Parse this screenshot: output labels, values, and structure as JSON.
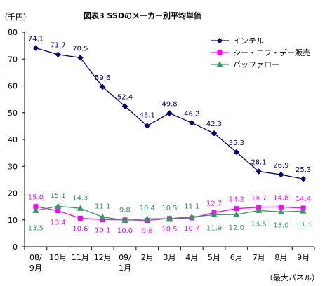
{
  "chart_data": {
    "type": "line",
    "title": "図表3  SSDのメーカー別平均単価",
    "ylabel": "（千円）",
    "xlabel": "（最大パネル）",
    "ylim": [
      0,
      80
    ],
    "yticks": [
      "0",
      "10",
      "20",
      "30",
      "40",
      "50",
      "60",
      "70",
      "80"
    ],
    "categories": [
      [
        "08/",
        "9月"
      ],
      [
        "10月"
      ],
      [
        "11月"
      ],
      [
        "12月"
      ],
      [
        "09/",
        "1月"
      ],
      [
        "2月"
      ],
      [
        "3月"
      ],
      [
        "4月"
      ],
      [
        "5月"
      ],
      [
        "6月"
      ],
      [
        "7月"
      ],
      [
        "8月"
      ],
      [
        "9月"
      ]
    ],
    "grid": false,
    "legend_position": "top-right",
    "series": [
      {
        "name": "インテル",
        "color": "#000080",
        "marker": "diamond",
        "values": [
          74.1,
          71.7,
          70.5,
          59.6,
          52.4,
          45.1,
          49.8,
          46.2,
          42.3,
          35.3,
          28.1,
          26.9,
          25.3
        ],
        "labels": [
          "74.1",
          "71.7",
          "70.5",
          "59.6",
          "52.4",
          "45.1",
          "49.8",
          "46.2",
          "42.3",
          "35.3",
          "28.1",
          "26.9",
          "25.3"
        ],
        "label_position": "above",
        "label_color": "#000080"
      },
      {
        "name": "シー・エフ・デー販売",
        "color": "#FF00FF",
        "marker": "square",
        "values": [
          15.0,
          13.4,
          10.6,
          10.1,
          10.0,
          9.8,
          10.5,
          10.7,
          12.7,
          14.2,
          14.7,
          14.8,
          14.4
        ],
        "labels": [
          "15.0",
          "13.4",
          "10.6",
          "10.1",
          "10.0",
          "9.8",
          "10.5",
          "10.7",
          "12.7",
          "14.2",
          "14.7",
          "14.8",
          "14.4"
        ],
        "label_color": "#FF00FF"
      },
      {
        "name": "バッファロー",
        "color": "#339966",
        "marker": "triangle",
        "values": [
          13.5,
          15.1,
          14.3,
          11.1,
          9.8,
          10.4,
          10.5,
          11.1,
          11.9,
          12.0,
          13.5,
          13.0,
          13.3
        ],
        "labels": [
          "13.5",
          "15.1",
          "14.3",
          "11.1",
          "9.8",
          "10.4",
          "10.5",
          "11.1",
          "11.9",
          "12.0",
          "13.5",
          "13.0",
          "13.3"
        ],
        "label_color": "#339966"
      }
    ]
  }
}
